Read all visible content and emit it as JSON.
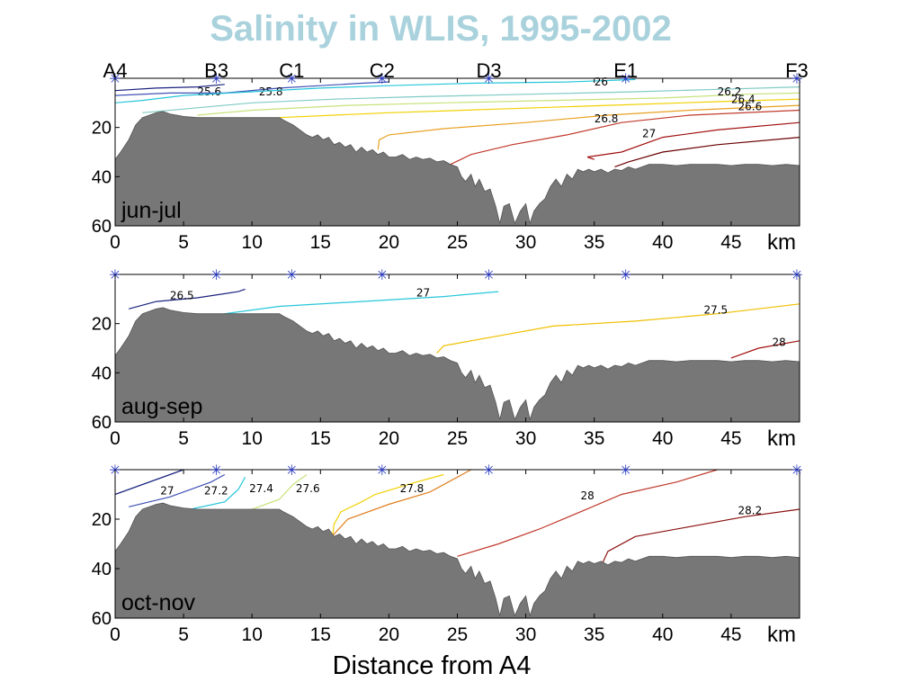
{
  "title": "Salinity in WLIS, 1995-2002",
  "xlabel": "Distance from A4",
  "chart_data": [
    {
      "type": "line",
      "subtype": "contour-section",
      "period": "jun-jul",
      "x_unit": "km",
      "xlim": [
        0,
        50
      ],
      "ylim": [
        0,
        60
      ],
      "y_inverted": true,
      "x_ticks": [
        0,
        5,
        10,
        15,
        20,
        25,
        30,
        35,
        40,
        45
      ],
      "y_ticks": [
        20,
        40,
        60
      ],
      "stations": [
        {
          "name": "A4",
          "x": 0
        },
        {
          "name": "B3",
          "x": 7.4
        },
        {
          "name": "C1",
          "x": 12.9
        },
        {
          "name": "C2",
          "x": 19.5
        },
        {
          "name": "D3",
          "x": 27.3
        },
        {
          "name": "E1",
          "x": 37.3
        },
        {
          "name": "F3",
          "x": 49.8
        }
      ],
      "contours": [
        {
          "level": "25.6",
          "color": "#1a237e",
          "points": [
            [
              0,
              5
            ],
            [
              3,
              4
            ],
            [
              6,
              3.5
            ],
            [
              8,
              2.5
            ]
          ],
          "label_at": [
            6,
            7
          ]
        },
        {
          "level": "25.8",
          "color": "#3f51b5",
          "points": [
            [
              0,
              7
            ],
            [
              4,
              6
            ],
            [
              8,
              6
            ],
            [
              12,
              4
            ],
            [
              15,
              3
            ],
            [
              18,
              2
            ],
            [
              20,
              1.5
            ]
          ],
          "label_at": [
            10.5,
            7
          ]
        },
        {
          "level": "26",
          "color": "#26c6da",
          "points": [
            [
              0,
              10
            ],
            [
              2,
              9
            ],
            [
              5,
              7
            ],
            [
              10,
              5.5
            ],
            [
              15,
              4
            ],
            [
              20,
              3
            ],
            [
              26,
              2
            ],
            [
              33,
              1.5
            ],
            [
              38,
              0.5
            ]
          ],
          "label_at": [
            35,
            3
          ]
        },
        {
          "level": "",
          "color": "#80cbc4",
          "points": [
            [
              2,
              14
            ],
            [
              6,
              12
            ],
            [
              10,
              10
            ],
            [
              16,
              8.5
            ],
            [
              22,
              7.5
            ],
            [
              30,
              6.5
            ],
            [
              38,
              5.5
            ],
            [
              44,
              4.5
            ],
            [
              50,
              3.5
            ]
          ],
          "label_at": null
        },
        {
          "level": "26.2",
          "color": "#c6e27a",
          "points": [
            [
              6,
              15
            ],
            [
              10,
              13
            ],
            [
              17,
              11
            ],
            [
              24,
              10
            ],
            [
              32,
              9
            ],
            [
              40,
              8
            ],
            [
              46,
              6.5
            ],
            [
              50,
              6
            ]
          ],
          "label_at": [
            44,
            7
          ]
        },
        {
          "level": "26.4",
          "color": "#f0d000",
          "points": [
            [
              12,
              16
            ],
            [
              20,
              14
            ],
            [
              28,
              12.5
            ],
            [
              36,
              11
            ],
            [
              44,
              9.5
            ],
            [
              50,
              8.5
            ]
          ],
          "label_at": [
            45,
            10
          ]
        },
        {
          "level": "",
          "color": "#e8a020",
          "points": [
            [
              19.2,
              29
            ],
            [
              19.3,
              25
            ],
            [
              20,
              23
            ],
            [
              24,
              20.5
            ],
            [
              30,
              18
            ],
            [
              36,
              15
            ],
            [
              42,
              13
            ],
            [
              50,
              11
            ]
          ],
          "label_at": null
        },
        {
          "level": "26.6",
          "color": "#c0392b",
          "points": [
            [
              24.5,
              35
            ],
            [
              26,
              31
            ],
            [
              29,
              27
            ],
            [
              33,
              23
            ],
            [
              37,
              18
            ],
            [
              42,
              15
            ],
            [
              50,
              13
            ]
          ],
          "label_at": [
            45.5,
            13
          ]
        },
        {
          "level": "26.8",
          "color": "#a11010",
          "points": [
            [
              35,
              33
            ],
            [
              34.5,
              32
            ],
            [
              37,
              30
            ],
            [
              40,
              24
            ],
            [
              44,
              21
            ],
            [
              50,
              18
            ]
          ],
          "label_at": [
            35,
            18
          ]
        },
        {
          "level": "27",
          "color": "#6a0000",
          "points": [
            [
              36.5,
              36
            ],
            [
              37.5,
              34
            ],
            [
              40,
              30
            ],
            [
              44,
              27
            ],
            [
              50,
              24
            ]
          ],
          "label_at": [
            38.5,
            24
          ]
        }
      ]
    },
    {
      "type": "line",
      "subtype": "contour-section",
      "period": "aug-sep",
      "x_unit": "km",
      "xlim": [
        0,
        50
      ],
      "ylim": [
        0,
        60
      ],
      "y_inverted": true,
      "x_ticks": [
        0,
        5,
        10,
        15,
        20,
        25,
        30,
        35,
        40,
        45
      ],
      "y_ticks": [
        20,
        40,
        60
      ],
      "station_x": [
        0,
        7.4,
        12.9,
        19.5,
        27.3,
        37.3,
        49.8
      ],
      "contours": [
        {
          "level": "26.5",
          "color": "#1a237e",
          "points": [
            [
              1,
              14
            ],
            [
              3,
              11
            ],
            [
              6,
              9.5
            ],
            [
              9,
              7
            ],
            [
              9.5,
              6
            ]
          ],
          "label_at": [
            4,
            10
          ]
        },
        {
          "level": "27",
          "color": "#26c6da",
          "points": [
            [
              8,
              16
            ],
            [
              12,
              13
            ],
            [
              18,
              11
            ],
            [
              24,
              9
            ],
            [
              28,
              7
            ]
          ],
          "label_at": [
            22,
            9
          ]
        },
        {
          "level": "27.5",
          "color": "#f0c000",
          "points": [
            [
              23.5,
              32
            ],
            [
              24,
              29
            ],
            [
              28,
              25
            ],
            [
              32,
              21
            ],
            [
              38,
              19
            ],
            [
              44,
              16
            ],
            [
              50,
              12
            ]
          ],
          "label_at": [
            43,
            16
          ]
        },
        {
          "level": "28",
          "color": "#a11010",
          "points": [
            [
              45,
              34
            ],
            [
              47,
              30
            ],
            [
              50,
              27
            ]
          ],
          "label_at": [
            48,
            29
          ]
        }
      ]
    },
    {
      "type": "line",
      "subtype": "contour-section",
      "period": "oct-nov",
      "x_unit": "km",
      "xlim": [
        0,
        50
      ],
      "ylim": [
        0,
        60
      ],
      "y_inverted": true,
      "x_ticks": [
        0,
        5,
        10,
        15,
        20,
        25,
        30,
        35,
        40,
        45
      ],
      "y_ticks": [
        20,
        40,
        60
      ],
      "station_x": [
        0,
        7.4,
        12.9,
        19.5,
        27.3,
        37.3,
        49.8
      ],
      "contours": [
        {
          "level": "",
          "color": "#1a237e",
          "points": [
            [
              0,
              10
            ],
            [
              2,
              6
            ],
            [
              4,
              2
            ],
            [
              5,
              0
            ]
          ],
          "label_at": null
        },
        {
          "level": "27",
          "color": "#3f51b5",
          "points": [
            [
              1,
              15
            ],
            [
              4,
              11
            ],
            [
              7,
              5
            ],
            [
              8,
              2
            ]
          ],
          "label_at": [
            3.3,
            10
          ]
        },
        {
          "level": "27.2",
          "color": "#26c6da",
          "points": [
            [
              5.5,
              16
            ],
            [
              8,
              13
            ],
            [
              9,
              8
            ],
            [
              9.5,
              3
            ]
          ],
          "label_at": [
            6.5,
            10
          ]
        },
        {
          "level": "27.4",
          "color": "#c6e27a",
          "points": [
            [
              9.5,
              17
            ],
            [
              12,
              12
            ],
            [
              13,
              6
            ],
            [
              14,
              2
            ]
          ],
          "label_at": [
            9.8,
            9
          ]
        },
        {
          "level": "27.6",
          "color": "#f0d000",
          "points": [
            [
              15.8,
              30
            ],
            [
              16,
              22
            ],
            [
              16.5,
              17
            ],
            [
              18,
              13
            ],
            [
              19,
              10
            ],
            [
              22,
              5
            ],
            [
              24,
              2
            ]
          ],
          "label_at": [
            13.2,
            9
          ]
        },
        {
          "level": "27.8",
          "color": "#e08020",
          "points": [
            [
              15.5,
              30
            ],
            [
              16,
              26
            ],
            [
              17,
              20
            ],
            [
              20,
              14
            ],
            [
              23,
              9
            ],
            [
              25,
              3
            ],
            [
              26,
              0
            ]
          ],
          "label_at": [
            20.8,
            9
          ]
        },
        {
          "level": "28",
          "color": "#c0392b",
          "points": [
            [
              25,
              35
            ],
            [
              28,
              30
            ],
            [
              31,
              24
            ],
            [
              34,
              17
            ],
            [
              37,
              10
            ],
            [
              41,
              5
            ],
            [
              44,
              0
            ]
          ],
          "label_at": [
            34,
            12
          ]
        },
        {
          "level": "28.2",
          "color": "#8b1010",
          "points": [
            [
              35.5,
              39
            ],
            [
              36,
              33
            ],
            [
              38,
              27
            ],
            [
              42,
              23
            ],
            [
              46,
              19
            ],
            [
              50,
              16
            ]
          ],
          "label_at": [
            45.5,
            18
          ]
        }
      ]
    }
  ],
  "bathymetry": [
    [
      0,
      33
    ],
    [
      0.4,
      30
    ],
    [
      1,
      25
    ],
    [
      1.5,
      19
    ],
    [
      2,
      16
    ],
    [
      2.5,
      15
    ],
    [
      3,
      14
    ],
    [
      3.5,
      13.5
    ],
    [
      4,
      14.5
    ],
    [
      5,
      15.5
    ],
    [
      6,
      16
    ],
    [
      8,
      16
    ],
    [
      10,
      16
    ],
    [
      12,
      16
    ],
    [
      12.3,
      17
    ],
    [
      13,
      19
    ],
    [
      13.5,
      21
    ],
    [
      14,
      23
    ],
    [
      14.4,
      24
    ],
    [
      14.8,
      23
    ],
    [
      15.2,
      25
    ],
    [
      15.6,
      24
    ],
    [
      16,
      27
    ],
    [
      16.4,
      26
    ],
    [
      16.8,
      28
    ],
    [
      17.2,
      27
    ],
    [
      17.6,
      30
    ],
    [
      18,
      28
    ],
    [
      18.4,
      30
    ],
    [
      18.8,
      29
    ],
    [
      19.2,
      31
    ],
    [
      19.6,
      30
    ],
    [
      20,
      32
    ],
    [
      20.5,
      32
    ],
    [
      21,
      31
    ],
    [
      21.5,
      33
    ],
    [
      22,
      32
    ],
    [
      22.5,
      33
    ],
    [
      23,
      32.5
    ],
    [
      23.5,
      34
    ],
    [
      24,
      33.5
    ],
    [
      24.5,
      35
    ],
    [
      25,
      36
    ],
    [
      25.3,
      40
    ],
    [
      25.6,
      42
    ],
    [
      26,
      39
    ],
    [
      26.3,
      44
    ],
    [
      26.6,
      41
    ],
    [
      27,
      46
    ],
    [
      27.4,
      45
    ],
    [
      27.8,
      52
    ],
    [
      28.1,
      59
    ],
    [
      28.4,
      52
    ],
    [
      28.8,
      51
    ],
    [
      29.2,
      59
    ],
    [
      29.6,
      54
    ],
    [
      30,
      51
    ],
    [
      30.3,
      59
    ],
    [
      30.6,
      54
    ],
    [
      31,
      51
    ],
    [
      31.4,
      49
    ],
    [
      31.8,
      44
    ],
    [
      32.2,
      41
    ],
    [
      32.6,
      44
    ],
    [
      33,
      39
    ],
    [
      33.4,
      41
    ],
    [
      33.8,
      37
    ],
    [
      34.2,
      38
    ],
    [
      34.6,
      37
    ],
    [
      35,
      38
    ],
    [
      35.5,
      37
    ],
    [
      36,
      38.5
    ],
    [
      36.5,
      37
    ],
    [
      37,
      37.5
    ],
    [
      37.5,
      36
    ],
    [
      38,
      37
    ],
    [
      38.5,
      36
    ],
    [
      39,
      35
    ],
    [
      40,
      35
    ],
    [
      41,
      35.5
    ],
    [
      42,
      35
    ],
    [
      43,
      35
    ],
    [
      44,
      35
    ],
    [
      45,
      35.5
    ],
    [
      46,
      35
    ],
    [
      47,
      35
    ],
    [
      48,
      35.5
    ],
    [
      49,
      35
    ],
    [
      50,
      35.5
    ]
  ],
  "colors": {
    "title": "#a9d2dd",
    "bathymetry_fill": "#777777",
    "station_marker": "#2233bb"
  }
}
